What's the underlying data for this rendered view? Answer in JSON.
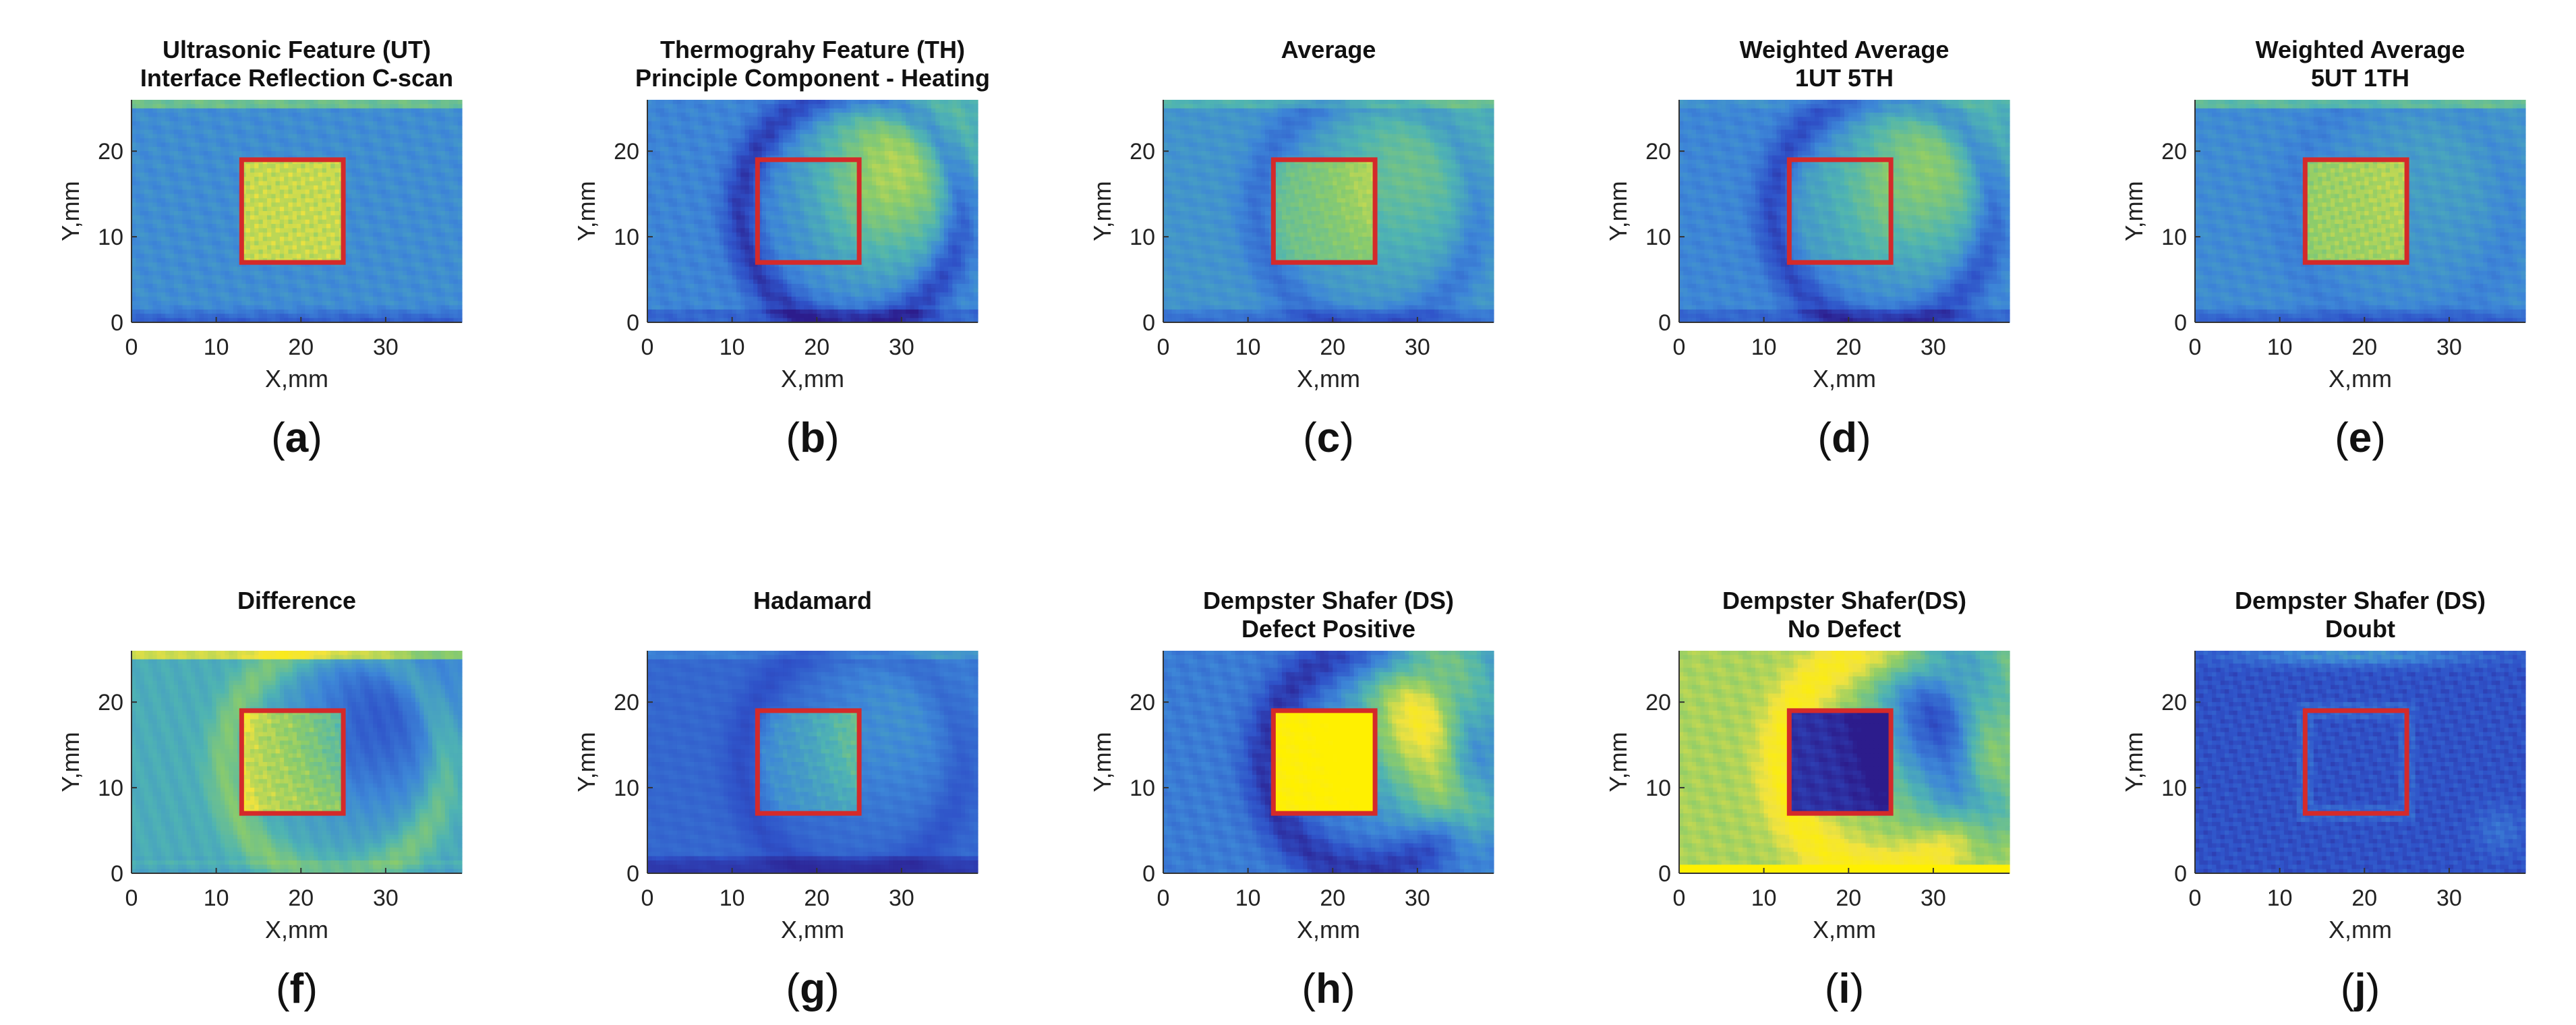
{
  "colors": {
    "colormap": [
      "#2c1c8c",
      "#2f53c9",
      "#3d86d7",
      "#4fb4b2",
      "#8ccc6a",
      "#f2e33e",
      "#fff000"
    ],
    "defect_box": "#d42a2a",
    "axis": "#333333"
  },
  "chart_data": [
    {
      "type": "heatmap",
      "panel": "(a)",
      "title": [
        "Ultrasonic Feature (UT)",
        "Interface Reflection C-scan"
      ],
      "xlabel": "X,mm",
      "ylabel": "Y,mm",
      "xlim": [
        0,
        39
      ],
      "ylim": [
        0,
        26
      ],
      "xticks": [
        0,
        10,
        20,
        30
      ],
      "yticks": [
        0,
        10,
        20
      ],
      "defect_box": {
        "x": [
          13,
          25
        ],
        "y": [
          7,
          19
        ]
      },
      "pattern": "ut"
    },
    {
      "type": "heatmap",
      "panel": "(b)",
      "title": [
        "Thermograhy Feature (TH)",
        "Principle Component - Heating"
      ],
      "xlabel": "X,mm",
      "ylabel": "Y,mm",
      "xlim": [
        0,
        39
      ],
      "ylim": [
        0,
        26
      ],
      "xticks": [
        0,
        10,
        20,
        30
      ],
      "yticks": [
        0,
        10,
        20
      ],
      "defect_box": {
        "x": [
          13,
          25
        ],
        "y": [
          7,
          19
        ]
      },
      "pattern": "th"
    },
    {
      "type": "heatmap",
      "panel": "(c)",
      "title": [
        "Average"
      ],
      "xlabel": "X,mm",
      "ylabel": "Y,mm",
      "xlim": [
        0,
        39
      ],
      "ylim": [
        0,
        26
      ],
      "xticks": [
        0,
        10,
        20,
        30
      ],
      "yticks": [
        0,
        10,
        20
      ],
      "defect_box": {
        "x": [
          13,
          25
        ],
        "y": [
          7,
          19
        ]
      },
      "pattern": "avg"
    },
    {
      "type": "heatmap",
      "panel": "(d)",
      "title": [
        "Weighted Average",
        "1UT 5TH"
      ],
      "xlabel": "X,mm",
      "ylabel": "Y,mm",
      "xlim": [
        0,
        39
      ],
      "ylim": [
        0,
        26
      ],
      "xticks": [
        0,
        10,
        20,
        30
      ],
      "yticks": [
        0,
        10,
        20
      ],
      "defect_box": {
        "x": [
          13,
          25
        ],
        "y": [
          7,
          19
        ]
      },
      "pattern": "w1ut5th"
    },
    {
      "type": "heatmap",
      "panel": "(e)",
      "title": [
        "Weighted Average",
        "5UT 1TH"
      ],
      "xlabel": "X,mm",
      "ylabel": "Y,mm",
      "xlim": [
        0,
        39
      ],
      "ylim": [
        0,
        26
      ],
      "xticks": [
        0,
        10,
        20,
        30
      ],
      "yticks": [
        0,
        10,
        20
      ],
      "defect_box": {
        "x": [
          13,
          25
        ],
        "y": [
          7,
          19
        ]
      },
      "pattern": "w5ut1th"
    },
    {
      "type": "heatmap",
      "panel": "(f)",
      "title": [
        "Difference"
      ],
      "xlabel": "X,mm",
      "ylabel": "Y,mm",
      "xlim": [
        0,
        39
      ],
      "ylim": [
        0,
        26
      ],
      "xticks": [
        0,
        10,
        20,
        30
      ],
      "yticks": [
        0,
        10,
        20
      ],
      "defect_box": {
        "x": [
          13,
          25
        ],
        "y": [
          7,
          19
        ]
      },
      "pattern": "diff"
    },
    {
      "type": "heatmap",
      "panel": "(g)",
      "title": [
        "Hadamard"
      ],
      "xlabel": "X,mm",
      "ylabel": "Y,mm",
      "xlim": [
        0,
        39
      ],
      "ylim": [
        0,
        26
      ],
      "xticks": [
        0,
        10,
        20,
        30
      ],
      "yticks": [
        0,
        10,
        20
      ],
      "defect_box": {
        "x": [
          13,
          25
        ],
        "y": [
          7,
          19
        ]
      },
      "pattern": "hadamard"
    },
    {
      "type": "heatmap",
      "panel": "(h)",
      "title": [
        "Dempster Shafer (DS)",
        "Defect Positive"
      ],
      "xlabel": "X,mm",
      "ylabel": "Y,mm",
      "xlim": [
        0,
        39
      ],
      "ylim": [
        0,
        26
      ],
      "xticks": [
        0,
        10,
        20,
        30
      ],
      "yticks": [
        0,
        10,
        20
      ],
      "defect_box": {
        "x": [
          13,
          25
        ],
        "y": [
          7,
          19
        ]
      },
      "pattern": "dspos"
    },
    {
      "type": "heatmap",
      "panel": "(i)",
      "title": [
        "Dempster Shafer(DS)",
        "No Defect"
      ],
      "xlabel": "X,mm",
      "ylabel": "Y,mm",
      "xlim": [
        0,
        39
      ],
      "ylim": [
        0,
        26
      ],
      "xticks": [
        0,
        10,
        20,
        30
      ],
      "yticks": [
        0,
        10,
        20
      ],
      "defect_box": {
        "x": [
          13,
          25
        ],
        "y": [
          7,
          19
        ]
      },
      "pattern": "dsneg"
    },
    {
      "type": "heatmap",
      "panel": "(j)",
      "title": [
        "Dempster Shafer (DS)",
        "Doubt"
      ],
      "xlabel": "X,mm",
      "ylabel": "Y,mm",
      "xlim": [
        0,
        39
      ],
      "ylim": [
        0,
        26
      ],
      "xticks": [
        0,
        10,
        20,
        30
      ],
      "yticks": [
        0,
        10,
        20
      ],
      "defect_box": {
        "x": [
          13,
          25
        ],
        "y": [
          7,
          19
        ]
      },
      "pattern": "doubt"
    }
  ]
}
